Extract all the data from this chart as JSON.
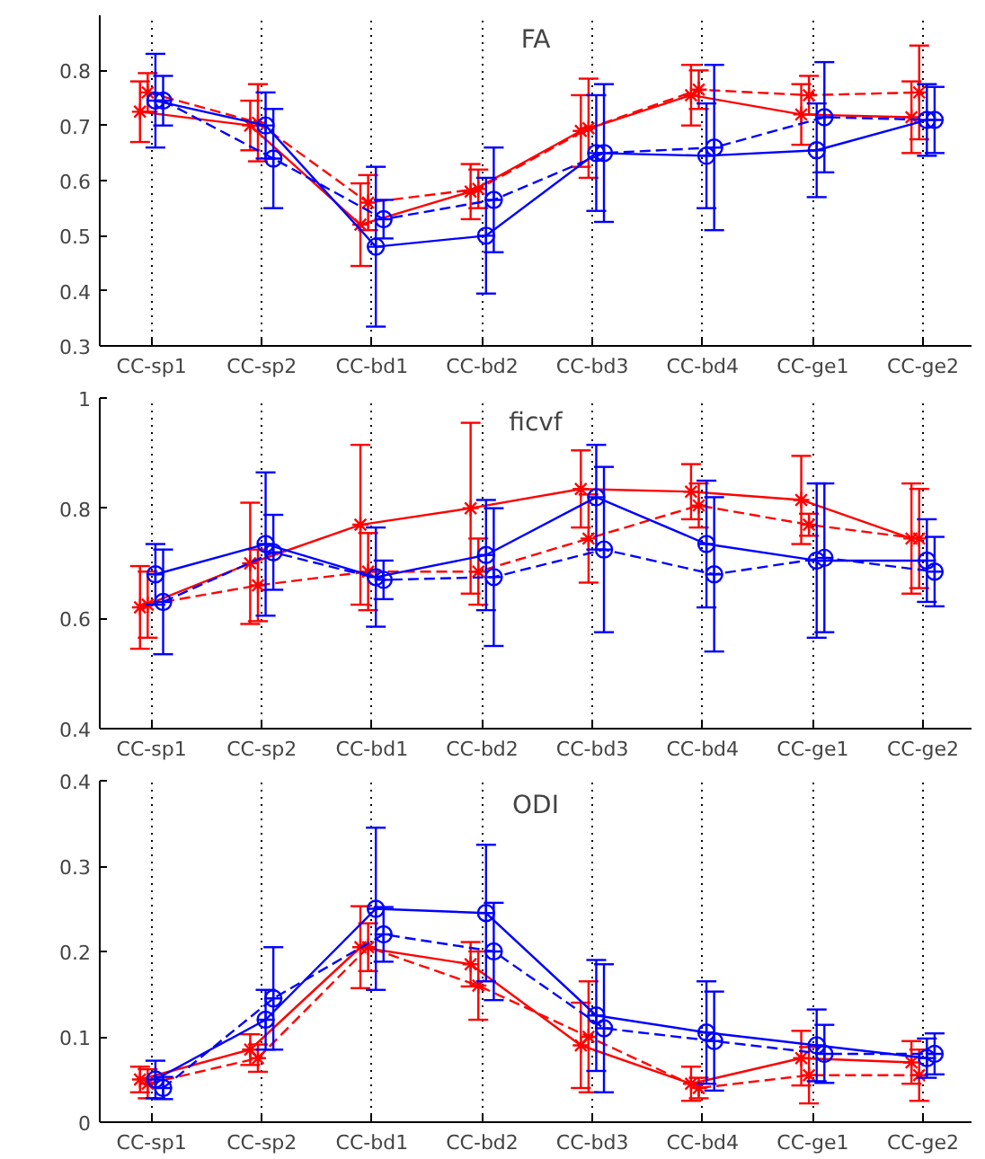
{
  "chart_data": [
    {
      "type": "line",
      "title": "FA",
      "categories": [
        "CC-sp1",
        "CC-sp2",
        "CC-bd1",
        "CC-bd2",
        "CC-bd3",
        "CC-bd4",
        "CC-ge1",
        "CC-ge2"
      ],
      "ylim": [
        0.3,
        0.9
      ],
      "yticks": [
        0.3,
        0.4,
        0.5,
        0.6,
        0.7,
        0.8
      ],
      "grid": "x",
      "series": [
        {
          "color": "#ff0000",
          "marker": "cross",
          "line_style": "solid",
          "values": [
            0.725,
            0.7,
            0.52,
            0.58,
            0.69,
            0.755,
            0.72,
            0.715
          ],
          "errors": [
            0.055,
            0.045,
            0.075,
            0.05,
            0.065,
            0.055,
            0.055,
            0.065
          ]
        },
        {
          "color": "#ff0000",
          "marker": "cross",
          "line_style": "dashed",
          "values": [
            0.76,
            0.705,
            0.56,
            0.585,
            0.695,
            0.765,
            0.755,
            0.76
          ],
          "errors": [
            0.035,
            0.07,
            0.05,
            0.035,
            0.09,
            0.035,
            0.035,
            0.085
          ]
        },
        {
          "color": "#0000ff",
          "marker": "circle",
          "line_style": "solid",
          "values": [
            0.745,
            0.7,
            0.48,
            0.5,
            0.65,
            0.645,
            0.655,
            0.71
          ],
          "errors": [
            0.085,
            0.06,
            0.145,
            0.105,
            0.105,
            0.095,
            0.085,
            0.065
          ]
        },
        {
          "color": "#0000ff",
          "marker": "circle",
          "line_style": "dashed",
          "values": [
            0.745,
            0.64,
            0.53,
            0.565,
            0.65,
            0.66,
            0.715,
            0.71
          ],
          "errors": [
            0.045,
            0.09,
            0.035,
            0.095,
            0.125,
            0.15,
            0.1,
            0.06
          ]
        }
      ]
    },
    {
      "type": "line",
      "title": "ficvf",
      "categories": [
        "CC-sp1",
        "CC-sp2",
        "CC-bd1",
        "CC-bd2",
        "CC-bd3",
        "CC-bd4",
        "CC-ge1",
        "CC-ge2"
      ],
      "ylim": [
        0.4,
        1
      ],
      "yticks": [
        0.4,
        0.6,
        0.8,
        1
      ],
      "grid": "x",
      "series": [
        {
          "color": "#ff0000",
          "marker": "cross",
          "line_style": "solid",
          "values": [
            0.62,
            0.7,
            0.77,
            0.8,
            0.835,
            0.83,
            0.815,
            0.745
          ],
          "errors": [
            0.075,
            0.11,
            0.145,
            0.155,
            0.07,
            0.05,
            0.08,
            0.1
          ]
        },
        {
          "color": "#ff0000",
          "marker": "cross",
          "line_style": "dashed",
          "values": [
            0.625,
            0.66,
            0.685,
            0.685,
            0.745,
            0.805,
            0.77,
            0.745
          ],
          "errors": [
            0.06,
            0.065,
            0.07,
            0.06,
            0.08,
            0.04,
            0.02,
            0.09
          ]
        },
        {
          "color": "#0000ff",
          "marker": "circle",
          "line_style": "solid",
          "values": [
            0.68,
            0.735,
            0.675,
            0.715,
            0.82,
            0.735,
            0.705,
            0.705
          ],
          "errors": [
            0.055,
            0.13,
            0.09,
            0.1,
            0.095,
            0.115,
            0.14,
            0.075
          ]
        },
        {
          "color": "#0000ff",
          "marker": "circle",
          "line_style": "dashed",
          "values": [
            0.63,
            0.72,
            0.67,
            0.675,
            0.725,
            0.68,
            0.71,
            0.685
          ],
          "errors": [
            0.095,
            0.068,
            0.035,
            0.125,
            0.15,
            0.14,
            0.135,
            0.063
          ]
        }
      ]
    },
    {
      "type": "line",
      "title": "ODI",
      "categories": [
        "CC-sp1",
        "CC-sp2",
        "CC-bd1",
        "CC-bd2",
        "CC-bd3",
        "CC-bd4",
        "CC-ge1",
        "CC-ge2"
      ],
      "ylim": [
        0,
        0.4
      ],
      "yticks": [
        0,
        0.1,
        0.2,
        0.3,
        0.4
      ],
      "grid": "x",
      "series": [
        {
          "color": "#ff0000",
          "marker": "cross",
          "line_style": "solid",
          "values": [
            0.05,
            0.085,
            0.205,
            0.185,
            0.09,
            0.045,
            0.075,
            0.07
          ],
          "errors": [
            0.015,
            0.018,
            0.048,
            0.026,
            0.05,
            0.02,
            0.032,
            0.025
          ]
        },
        {
          "color": "#ff0000",
          "marker": "cross",
          "line_style": "dashed",
          "values": [
            0.045,
            0.075,
            0.205,
            0.16,
            0.1,
            0.04,
            0.055,
            0.055
          ],
          "errors": [
            0.017,
            0.016,
            0.028,
            0.04,
            0.065,
            0.012,
            0.033,
            0.03
          ]
        },
        {
          "color": "#0000ff",
          "marker": "circle",
          "line_style": "solid",
          "values": [
            0.05,
            0.12,
            0.25,
            0.245,
            0.125,
            0.105,
            0.09,
            0.075
          ],
          "errors": [
            0.022,
            0.035,
            0.095,
            0.08,
            0.065,
            0.06,
            0.042,
            0.023
          ]
        },
        {
          "color": "#0000ff",
          "marker": "circle",
          "line_style": "dashed",
          "values": [
            0.04,
            0.145,
            0.22,
            0.2,
            0.11,
            0.095,
            0.08,
            0.08
          ],
          "errors": [
            0.013,
            0.06,
            0.032,
            0.057,
            0.075,
            0.058,
            0.034,
            0.024
          ]
        }
      ]
    }
  ]
}
